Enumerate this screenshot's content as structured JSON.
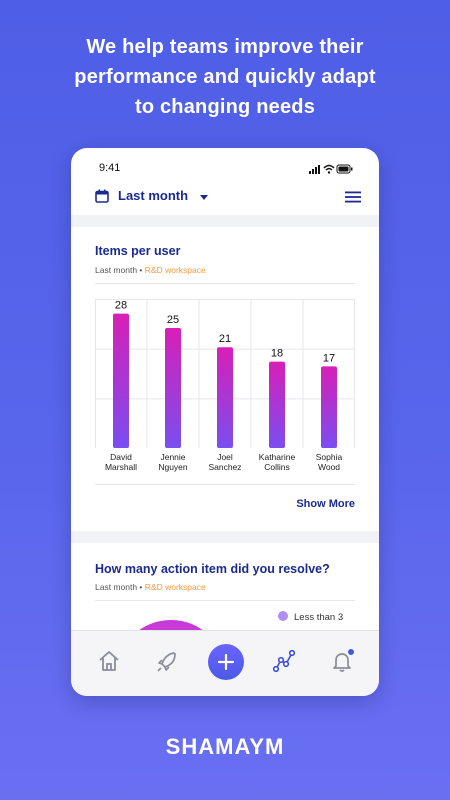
{
  "headline": {
    "line1": "We help teams improve their",
    "line2": "performance and quickly adapt",
    "line3": "to changing needs"
  },
  "status_bar": {
    "time": "9:41"
  },
  "topbar": {
    "period": "Last month"
  },
  "card1": {
    "title": "Items per user",
    "sub_period": "Last month",
    "sub_sep": " • ",
    "sub_workspace": "R&D workspace",
    "show_more": "Show More"
  },
  "card2": {
    "title": "How many action item did you resolve?",
    "sub_period": "Last month",
    "sub_sep": " • ",
    "sub_workspace": "R&D workspace",
    "legend_1": "Less than 3"
  },
  "chart_data": {
    "type": "bar",
    "categories": [
      [
        "David",
        "Marshall"
      ],
      [
        "Jennie",
        "Nguyen"
      ],
      [
        "Joel",
        "Sanchez"
      ],
      [
        "Katharine",
        "Collins"
      ],
      [
        "Sophia",
        "Wood"
      ]
    ],
    "values": [
      28,
      25,
      21,
      18,
      17
    ],
    "ylim": [
      0,
      30
    ],
    "grid": true,
    "colors": {
      "top": "#d81fb7",
      "bottom": "#7a4ef0"
    }
  },
  "tabs": [
    "home-icon",
    "rocket-icon",
    "add-icon",
    "analytics-icon",
    "bell-icon"
  ],
  "brand": {
    "text": "SHAMAYM"
  },
  "colors": {
    "accent": "#1b2a8f",
    "workspace": "#f39a3c",
    "background": "#5866ec"
  }
}
